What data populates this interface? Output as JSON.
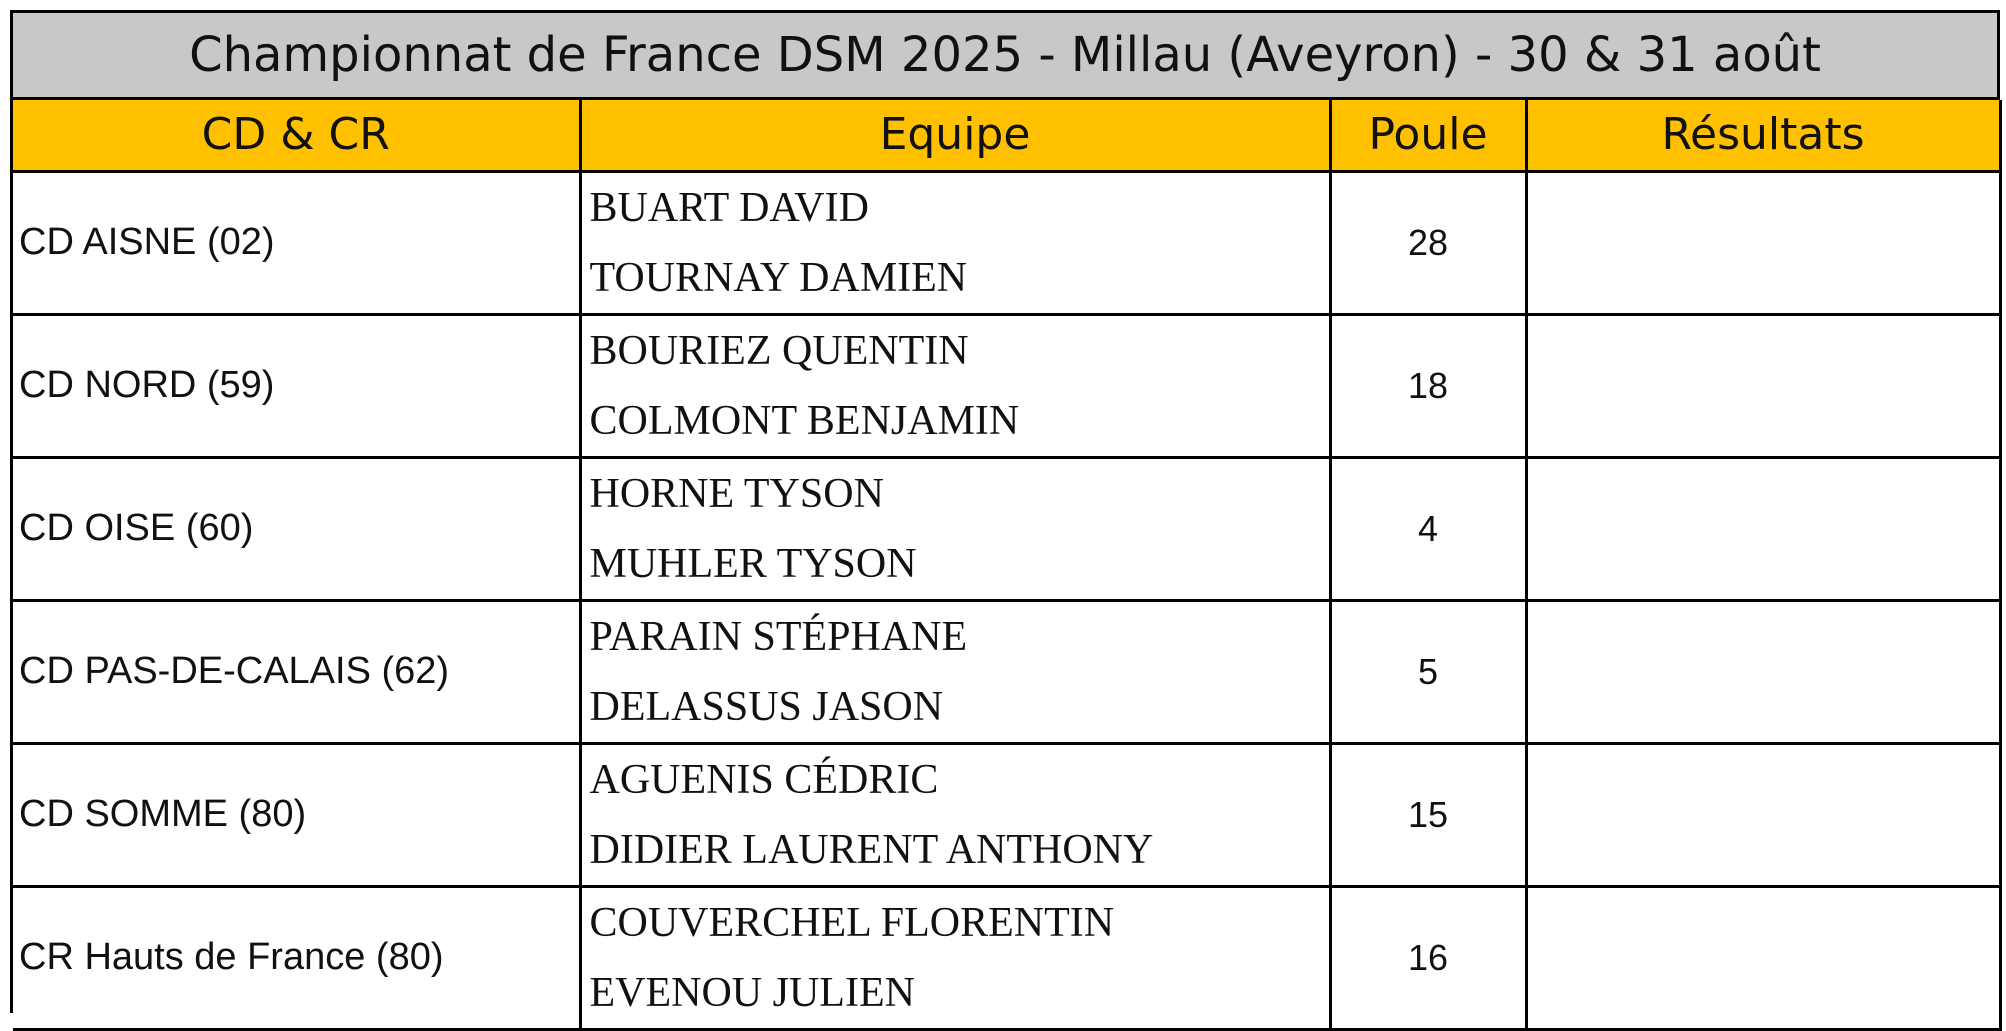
{
  "title": "Championnat de France DSM 2025 - Millau (Aveyron) - 30 & 31 août",
  "headers": {
    "cd_cr": "CD & CR",
    "equipe": "Equipe",
    "poule": "Poule",
    "resultats": "Résultats"
  },
  "colors": {
    "title_background": "#c8c8c8",
    "header_background": "#ffc000",
    "border": "#000000"
  },
  "rows": [
    {
      "cd": "CD AISNE (02)",
      "player1": "BUART DAVID",
      "player2": "TOURNAY DAMIEN",
      "poule": "28",
      "result": ""
    },
    {
      "cd": "CD NORD (59)",
      "player1": "BOURIEZ QUENTIN",
      "player2": "COLMONT BENJAMIN",
      "poule": "18",
      "result": ""
    },
    {
      "cd": "CD OISE (60)",
      "player1": "HORNE TYSON",
      "player2": "MUHLER TYSON",
      "poule": "4",
      "result": ""
    },
    {
      "cd": "CD PAS-DE-CALAIS (62)",
      "player1": "PARAIN STÉPHANE",
      "player2": "DELASSUS JASON",
      "poule": "5",
      "result": ""
    },
    {
      "cd": "CD SOMME (80)",
      "player1": "AGUENIS CÉDRIC",
      "player2": "DIDIER LAURENT ANTHONY",
      "poule": "15",
      "result": ""
    },
    {
      "cd": "CR Hauts de France (80)",
      "player1": "COUVERCHEL FLORENTIN",
      "player2": "EVENOU JULIEN",
      "poule": "16",
      "result": ""
    }
  ]
}
